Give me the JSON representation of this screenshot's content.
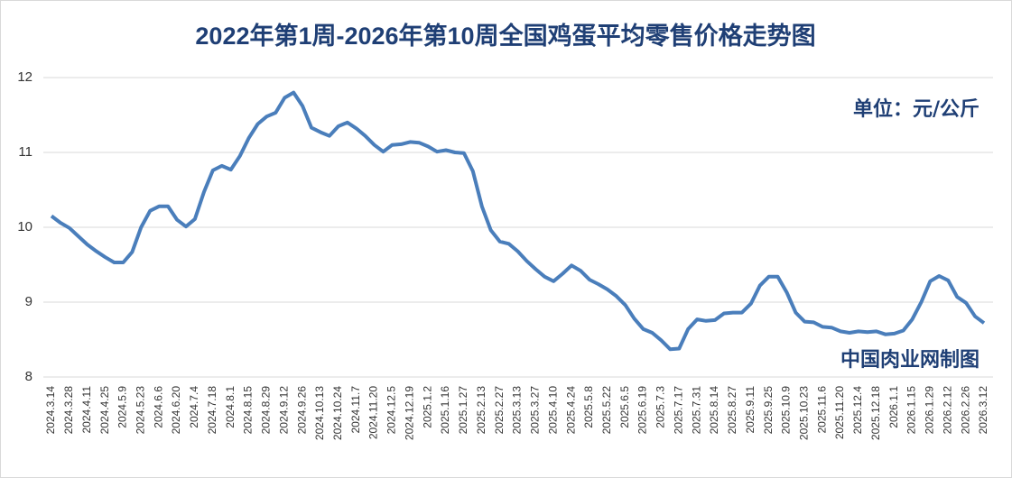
{
  "chart_data": {
    "type": "line",
    "title": "2022年第1周-2026年第10周全国鸡蛋平均零售价格走势图",
    "unit_note": "单位：元/公斤",
    "source_note": "中国肉业网制图",
    "categories": [
      "2024.3.14",
      null,
      "2024.3.28",
      null,
      "2024.4.11",
      null,
      "2024.4.25",
      null,
      "2024.5.9",
      null,
      "2024.5.23",
      null,
      "2024.6.6",
      null,
      "2024.6.20",
      null,
      "2024.7.4",
      null,
      "2024.7.18",
      null,
      "2024.8.1",
      null,
      "2024.8.15",
      null,
      "2024.8.29",
      null,
      "2024.9.12",
      null,
      "2024.9.26",
      null,
      "2024.10.13",
      null,
      "2024.10.24",
      null,
      "2024.11.7",
      null,
      "2024.11.20",
      null,
      "2024.12.5",
      null,
      "2024.12.19",
      null,
      "2025.1.2",
      null,
      "2025.1.16",
      null,
      "2025.1.27",
      null,
      "2025.2.13",
      null,
      "2025.2.27",
      null,
      "2025.3.13",
      null,
      "2025.3.27",
      null,
      "2025.4.10",
      null,
      "2025.4.24",
      null,
      "2025.5.8",
      null,
      "2025.5.22",
      null,
      "2025.6.5",
      null,
      "2025.6.19",
      null,
      "2025.7.3",
      null,
      "2025.7.17",
      null,
      "2025.7.31",
      null,
      "2025.8.14",
      null,
      "2025.8.27",
      null,
      "2025.9.11",
      null,
      "2025.9.25",
      null,
      "2025.10.9",
      null,
      "2025.10.23",
      null,
      "2025.11.6",
      null,
      "2025.11.20",
      null,
      "2025.12.4",
      null,
      "2025.12.18",
      null,
      "2026.1.1",
      null,
      "2026.1.15",
      null,
      "2026.1.29",
      null,
      "2026.2.12",
      null,
      "2026.2.26",
      null,
      "2026.3.12"
    ],
    "series": [
      {
        "color": "#4a7ebb",
        "values": [
          10.15,
          10.06,
          9.99,
          9.88,
          9.77,
          9.68,
          9.6,
          9.53,
          9.53,
          9.67,
          10.0,
          10.22,
          10.28,
          10.28,
          10.1,
          10.01,
          10.11,
          10.47,
          10.76,
          10.82,
          10.77,
          10.95,
          11.19,
          11.38,
          11.48,
          11.53,
          11.73,
          11.8,
          11.62,
          11.33,
          11.27,
          11.22,
          11.35,
          11.4,
          11.32,
          11.22,
          11.1,
          11.01,
          11.1,
          11.11,
          11.14,
          11.13,
          11.08,
          11.01,
          11.03,
          11.0,
          10.99,
          10.75,
          10.28,
          9.96,
          9.81,
          9.78,
          9.68,
          9.55,
          9.44,
          9.34,
          9.28,
          9.38,
          9.49,
          9.42,
          9.3,
          9.24,
          9.17,
          9.08,
          8.96,
          8.78,
          8.64,
          8.59,
          8.49,
          8.37,
          8.38,
          8.64,
          8.77,
          8.75,
          8.76,
          8.85,
          8.86,
          8.86,
          8.98,
          9.22,
          9.34,
          9.34,
          9.13,
          8.86,
          8.74,
          8.73,
          8.67,
          8.66,
          8.61,
          8.59,
          8.61,
          8.6,
          8.61,
          8.57,
          8.58,
          8.62,
          8.77,
          9.0,
          9.28,
          9.35,
          9.29,
          9.07,
          8.99,
          8.81,
          8.72
        ]
      }
    ],
    "ylim": [
      8,
      12
    ],
    "yticks": [
      8,
      9,
      10,
      11,
      12
    ],
    "grid": true
  }
}
